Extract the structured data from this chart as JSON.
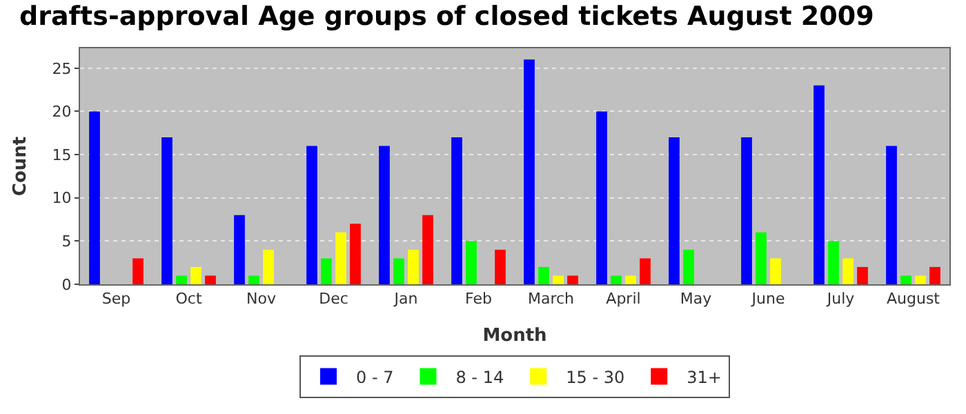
{
  "chart_data": {
    "type": "bar",
    "title": "drafts-approval Age groups of closed tickets August 2009",
    "xlabel": "Month",
    "ylabel": "Count",
    "categories": [
      "Sep",
      "Oct",
      "Nov",
      "Dec",
      "Jan",
      "Feb",
      "March",
      "April",
      "May",
      "June",
      "July",
      "August"
    ],
    "series": [
      {
        "name": "0 - 7",
        "color": "#0000ff",
        "values": [
          20,
          17,
          8,
          16,
          16,
          17,
          26,
          20,
          17,
          17,
          23,
          16
        ]
      },
      {
        "name": "8 - 14",
        "color": "#00ff00",
        "values": [
          0,
          1,
          1,
          3,
          3,
          5,
          2,
          1,
          4,
          6,
          5,
          1
        ]
      },
      {
        "name": "15 - 30",
        "color": "#ffff00",
        "values": [
          0,
          2,
          4,
          6,
          4,
          0,
          1,
          1,
          0,
          3,
          3,
          1
        ]
      },
      {
        "name": "31+",
        "color": "#ff0000",
        "values": [
          3,
          1,
          0,
          7,
          8,
          4,
          1,
          3,
          0,
          0,
          2,
          2
        ]
      }
    ],
    "ylim": [
      0,
      27.3
    ],
    "yticks": [
      0,
      5,
      10,
      15,
      20,
      25
    ],
    "grid": "y",
    "legend": "bottom"
  }
}
